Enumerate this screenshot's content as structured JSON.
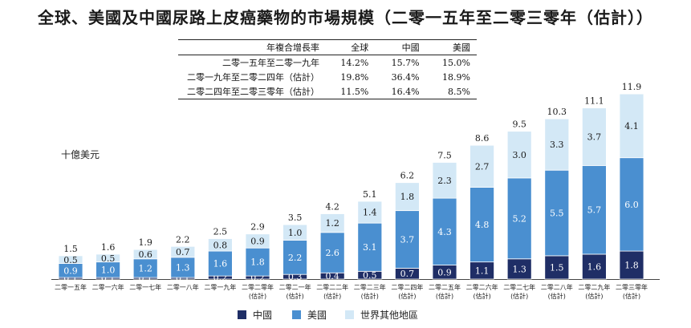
{
  "title": "全球、美國及中國尿路上皮癌藥物的市場規模（二零一五年至二零三零年（估計））",
  "cagr_table": {
    "headers": [
      "年複合增長率",
      "全球",
      "中國",
      "美國"
    ],
    "rows": [
      [
        "二零一五年至二零一九年",
        "14.2%",
        "15.7%",
        "15.0%"
      ],
      [
        "二零一九年至二零二四年（估計）",
        "19.8%",
        "36.4%",
        "18.9%"
      ],
      [
        "二零二四年至二零三零年（估計）",
        "11.5%",
        "16.4%",
        "8.5%"
      ]
    ]
  },
  "unit_label": "十億美元",
  "colors": {
    "china": "#1f2e66",
    "us": "#4a8fd0",
    "rest": "#d3e8f6"
  },
  "chart_data": {
    "type": "bar",
    "stacked": true,
    "categories": [
      [
        "二零一五年"
      ],
      [
        "二零一六年"
      ],
      [
        "二零一七年"
      ],
      [
        "二零一八年"
      ],
      [
        "二零一九年"
      ],
      [
        "二零二零年",
        "(估計)"
      ],
      [
        "二零二一年",
        "(估計)"
      ],
      [
        "二零二二年",
        "(估計)"
      ],
      [
        "二零二三年",
        "(估計)"
      ],
      [
        "二零二四年",
        "(估計)"
      ],
      [
        "二零二五年",
        "(估計)"
      ],
      [
        "二零二六年",
        "(估計)"
      ],
      [
        "二零二七年",
        "(估計)"
      ],
      [
        "二零二八年",
        "(估計)"
      ],
      [
        "二零二九年",
        "(估計)"
      ],
      [
        "二零三零年",
        "(估計)"
      ]
    ],
    "series": [
      {
        "name": "中國",
        "values": [
          0.1,
          0.1,
          0.1,
          0.1,
          0.2,
          0.2,
          0.3,
          0.4,
          0.5,
          0.7,
          0.9,
          1.1,
          1.3,
          1.5,
          1.6,
          1.8
        ]
      },
      {
        "name": "美國",
        "values": [
          0.9,
          1.0,
          1.2,
          1.3,
          1.6,
          1.8,
          2.2,
          2.6,
          3.1,
          3.7,
          4.3,
          4.8,
          5.2,
          5.5,
          5.7,
          6.0
        ]
      },
      {
        "name": "世界其他地區",
        "values": [
          0.5,
          0.5,
          0.6,
          0.7,
          0.8,
          0.9,
          1.0,
          1.2,
          1.4,
          1.8,
          2.3,
          2.7,
          3.0,
          3.3,
          3.7,
          4.1
        ]
      }
    ],
    "totals": [
      1.5,
      1.6,
      1.9,
      2.2,
      2.5,
      2.9,
      3.5,
      4.2,
      5.1,
      6.2,
      7.5,
      8.6,
      9.5,
      10.3,
      11.1,
      11.9
    ],
    "ylabel": "十億美元",
    "legend_position": "bottom",
    "grid": false
  }
}
